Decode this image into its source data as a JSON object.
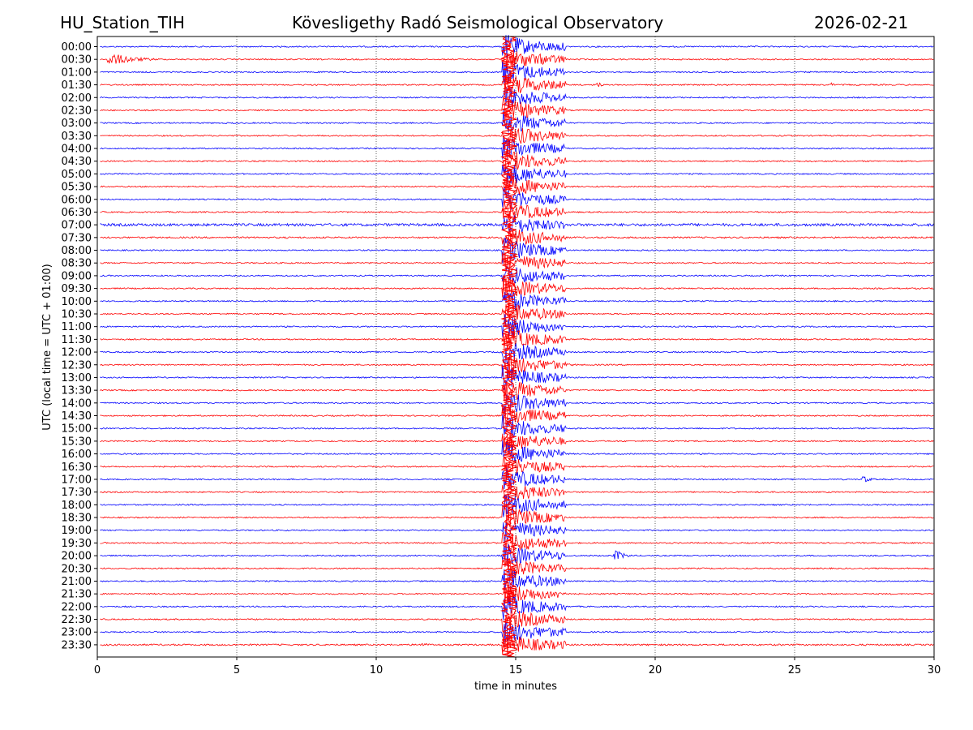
{
  "header": {
    "station": "HU_Station_TIH",
    "observatory": "Kövesligethy Radó Seismological Observatory",
    "date": "2026-02-21"
  },
  "chart_data": {
    "type": "line",
    "title": "Kövesligethy Radó Seismological Observatory",
    "xlabel": "time in minutes",
    "ylabel": "UTC (local time = UTC + 01:00)",
    "xlim": [
      0,
      30
    ],
    "x_ticks": [
      "0",
      "5",
      "10",
      "15",
      "20",
      "25",
      "30"
    ],
    "grid": "vertical dotted lines at 5-minute intervals",
    "trace_colors": [
      "#0000ff",
      "#ff0000"
    ],
    "row_labels": [
      "00:00",
      "00:30",
      "01:00",
      "01:30",
      "02:00",
      "02:30",
      "03:00",
      "03:30",
      "04:00",
      "04:30",
      "05:00",
      "05:30",
      "06:00",
      "06:30",
      "07:00",
      "07:30",
      "08:00",
      "08:30",
      "09:00",
      "09:30",
      "10:00",
      "10:30",
      "11:00",
      "11:30",
      "12:00",
      "12:30",
      "13:00",
      "13:30",
      "14:00",
      "14:30",
      "15:00",
      "15:30",
      "16:00",
      "16:30",
      "17:00",
      "17:30",
      "18:00",
      "18:30",
      "19:00",
      "19:30",
      "20:00",
      "20:30",
      "21:00",
      "21:30",
      "22:00",
      "22:30",
      "23:00",
      "23:30"
    ],
    "noise_levels": [
      0.8,
      0.8,
      0.8,
      0.8,
      0.8,
      0.8,
      0.8,
      0.8,
      0.8,
      0.8,
      0.8,
      0.8,
      0.8,
      0.8,
      1.6,
      1.0,
      0.8,
      0.8,
      0.8,
      0.8,
      0.8,
      0.8,
      0.8,
      0.8,
      0.8,
      0.8,
      0.8,
      0.8,
      0.8,
      0.8,
      0.8,
      0.8,
      0.8,
      0.8,
      0.8,
      0.8,
      0.8,
      0.8,
      0.8,
      0.8,
      0.8,
      0.8,
      0.8,
      0.8,
      0.8,
      0.8,
      0.8,
      1.0
    ],
    "events": [
      {
        "row": "00:30",
        "start_min": 0.3,
        "duration_min": 2.5,
        "peak_amplitude": 10
      },
      {
        "row": "01:30",
        "start_min": 17.9,
        "duration_min": 0.4,
        "peak_amplitude": 6
      },
      {
        "row": "01:30",
        "start_min": 26.3,
        "duration_min": 0.3,
        "peak_amplitude": 4
      },
      {
        "row": "17:00",
        "start_min": 27.4,
        "duration_min": 0.8,
        "peak_amplitude": 6
      },
      {
        "row": "20:00",
        "start_min": 18.5,
        "duration_min": 1.0,
        "peak_amplitude": 9
      },
      {
        "row": "23:30",
        "start_min": 11.5,
        "duration_min": 1.5,
        "peak_amplitude": 3
      }
    ],
    "earthquake": {
      "start_min": 14.5,
      "end_min": 16.8,
      "first_row": "00:00",
      "coda_row": "12:30",
      "coda_end_min": 19.2,
      "last_row": "23:30"
    }
  }
}
